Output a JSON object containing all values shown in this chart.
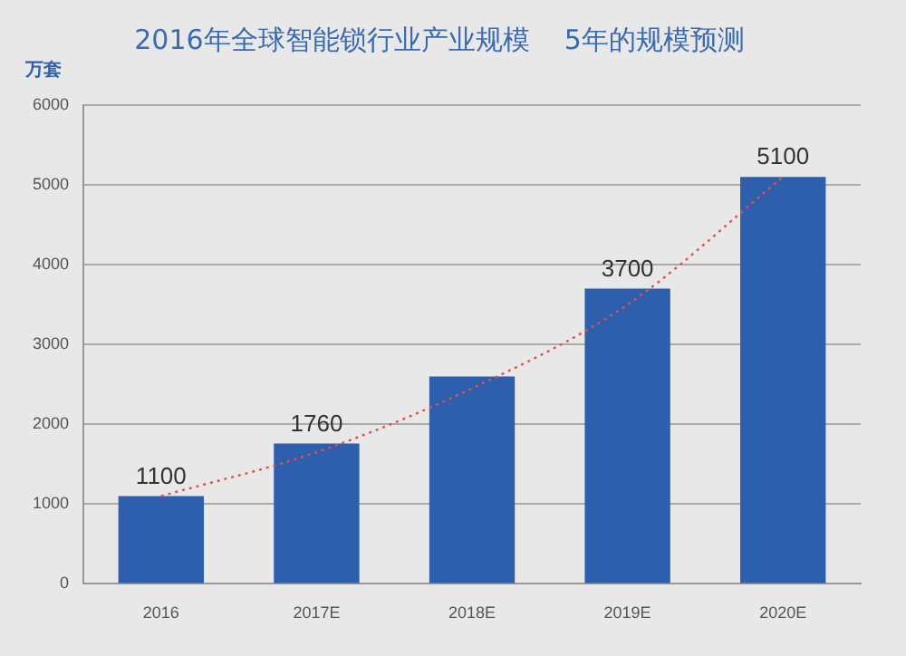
{
  "chart_data": {
    "type": "bar",
    "title": "2016年全球智能锁行业产业规模    5年的规模预测",
    "ylabel": "万套",
    "categories": [
      "2016",
      "2017E",
      "2018E",
      "2019E",
      "2020E"
    ],
    "series": [
      {
        "color": "#2e5fad",
        "values": [
          1100,
          1760,
          2600,
          3700,
          5100
        ],
        "value_labels": [
          "1100",
          "1760",
          null,
          "3700",
          "5100"
        ]
      },
      {
        "type": "line",
        "color": "#e05050",
        "line_style": "dotted",
        "marker": "none",
        "values": [
          1100,
          1650,
          2450,
          3500,
          5100
        ]
      }
    ],
    "ylim": [
      0,
      6000
    ],
    "yticks": [
      0,
      1000,
      2000,
      3000,
      4000,
      5000,
      6000
    ],
    "grid": "y",
    "legend": false
  }
}
